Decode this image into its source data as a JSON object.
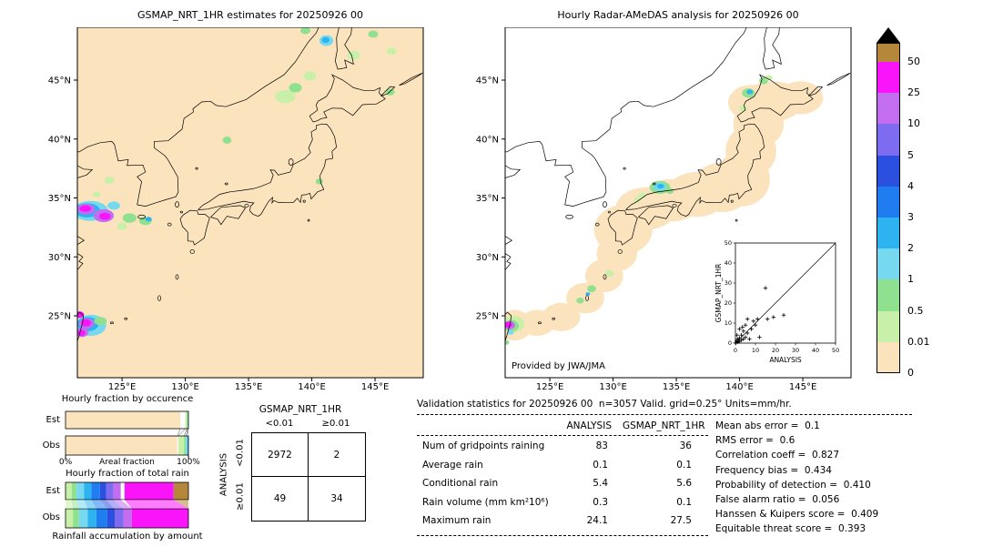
{
  "colors": {
    "background": "#ffffff",
    "map_land": "#fbe3bd",
    "coverage": "#fbe3bd",
    "coastline": "#000000",
    "text": "#000000"
  },
  "chart_data": [
    {
      "type": "map",
      "title": "GSMAP_NRT_1HR estimates for 20250926 00",
      "background": "#fbe3bd",
      "x_ticks": [
        {
          "lon": 125,
          "label": "125°E"
        },
        {
          "lon": 130,
          "label": "130°E"
        },
        {
          "lon": 135,
          "label": "135°E"
        },
        {
          "lon": 140,
          "label": "140°E"
        },
        {
          "lon": 145,
          "label": "145°E"
        }
      ],
      "y_ticks": [
        {
          "lat": 45,
          "label": "45°N"
        },
        {
          "lat": 40,
          "label": "40°N"
        },
        {
          "lat": 35,
          "label": "35°N"
        },
        {
          "lat": 30,
          "label": "30°N"
        },
        {
          "lat": 25,
          "label": "25°N"
        }
      ],
      "blobs": [
        [
          122.5,
          33.9,
          1.4,
          0.85,
          "#76d9f0"
        ],
        [
          122.25,
          33.95,
          1.0,
          0.6,
          "#2db4f0"
        ],
        [
          122.15,
          34.05,
          0.72,
          0.45,
          "#c36df0"
        ],
        [
          122.1,
          34.1,
          0.45,
          0.28,
          "#fa14fa"
        ],
        [
          123.55,
          33.5,
          0.8,
          0.55,
          "#c36df0"
        ],
        [
          123.65,
          33.45,
          0.45,
          0.3,
          "#fa14fa"
        ],
        [
          124.35,
          34.35,
          0.5,
          0.35,
          "#76d9f0"
        ],
        [
          125.6,
          33.3,
          0.55,
          0.4,
          "#8fe08f"
        ],
        [
          126.85,
          33.05,
          0.5,
          0.35,
          "#8fe08f"
        ],
        [
          127.1,
          33.2,
          0.25,
          0.2,
          "#2db4f0"
        ],
        [
          125.0,
          32.6,
          0.4,
          0.3,
          "#c8f0a8"
        ],
        [
          124.0,
          36.5,
          0.4,
          0.3,
          "#c8f0a8"
        ],
        [
          123.0,
          35.3,
          0.32,
          0.25,
          "#c8f0a8"
        ],
        [
          122.55,
          24.2,
          1.2,
          0.9,
          "#76d9f0"
        ],
        [
          122.3,
          24.3,
          0.85,
          0.6,
          "#2db4f0"
        ],
        [
          122.2,
          24.35,
          0.6,
          0.45,
          "#c36df0"
        ],
        [
          122.15,
          24.4,
          0.4,
          0.3,
          "#fa14fa"
        ],
        [
          121.85,
          23.6,
          0.5,
          0.4,
          "#c36df0"
        ],
        [
          121.8,
          23.55,
          0.3,
          0.25,
          "#fa14fa"
        ],
        [
          123.3,
          24.55,
          0.5,
          0.35,
          "#8fe08f"
        ],
        [
          121.65,
          25.1,
          0.35,
          0.28,
          "#fa14fa"
        ],
        [
          137.9,
          43.6,
          0.8,
          0.55,
          "#c8f0a8"
        ],
        [
          138.7,
          44.35,
          0.5,
          0.4,
          "#8fe08f"
        ],
        [
          139.85,
          45.35,
          0.5,
          0.4,
          "#c8f0a8"
        ],
        [
          141.15,
          48.35,
          0.55,
          0.45,
          "#76d9f0"
        ],
        [
          141.1,
          48.4,
          0.3,
          0.25,
          "#2db4f0"
        ],
        [
          143.3,
          47.1,
          0.5,
          0.4,
          "#c8f0a8"
        ],
        [
          144.85,
          48.9,
          0.4,
          0.3,
          "#8fe08f"
        ],
        [
          146.3,
          47.45,
          0.4,
          0.3,
          "#c8f0a8"
        ],
        [
          146.2,
          44.0,
          0.35,
          0.3,
          "#8fe08f"
        ],
        [
          133.3,
          39.9,
          0.35,
          0.3,
          "#8fe08f"
        ],
        [
          140.6,
          36.4,
          0.3,
          0.25,
          "#8fe08f"
        ],
        [
          139.5,
          49.2,
          0.4,
          0.3,
          "#8fe08f"
        ]
      ]
    },
    {
      "type": "map",
      "title": "Hourly Radar-AMeDAS analysis for 20250926 00",
      "credit": "Provided by JWA/JMA",
      "background": "#ffffff",
      "x_ticks": [
        {
          "lon": 125,
          "label": "125°E"
        },
        {
          "lon": 130,
          "label": "130°E"
        },
        {
          "lon": 135,
          "label": "135°E"
        },
        {
          "lon": 140,
          "label": "140°E"
        },
        {
          "lon": 145,
          "label": "145°E"
        }
      ],
      "y_ticks": [
        {
          "lat": 45,
          "label": "45°N"
        },
        {
          "lat": 40,
          "label": "40°N"
        },
        {
          "lat": 35,
          "label": "35°N"
        },
        {
          "lat": 30,
          "label": "30°N"
        },
        {
          "lat": 25,
          "label": "25°N"
        }
      ],
      "coverage": [
        [
          130.8,
          32.3,
          2.3,
          2.1
        ],
        [
          132.6,
          34.1,
          2.4,
          1.8
        ],
        [
          134.6,
          34.8,
          2.4,
          1.8
        ],
        [
          136.6,
          35.3,
          2.4,
          1.9
        ],
        [
          138.6,
          35.9,
          2.4,
          2.1
        ],
        [
          140.2,
          36.6,
          2.2,
          2.3
        ],
        [
          140.9,
          39.0,
          2.0,
          2.2
        ],
        [
          141.5,
          41.3,
          2.0,
          2.0
        ],
        [
          142.6,
          43.2,
          2.4,
          1.7
        ],
        [
          140.9,
          43.1,
          1.8,
          1.5
        ],
        [
          144.8,
          43.5,
          1.8,
          1.4
        ],
        [
          130.3,
          30.3,
          1.6,
          1.5
        ],
        [
          129.3,
          28.4,
          1.5,
          1.4
        ],
        [
          127.8,
          26.5,
          1.5,
          1.3
        ],
        [
          125.9,
          24.9,
          1.5,
          1.2
        ],
        [
          124.0,
          24.4,
          1.4,
          1.1
        ],
        [
          122.2,
          24.2,
          1.4,
          1.3
        ]
      ],
      "blobs": [
        [
          133.7,
          35.9,
          0.8,
          0.55,
          "#8fe08f"
        ],
        [
          133.7,
          35.95,
          0.5,
          0.35,
          "#76d9f0"
        ],
        [
          133.75,
          36.0,
          0.28,
          0.2,
          "#2db4f0"
        ],
        [
          134.5,
          35.6,
          0.3,
          0.25,
          "#8fe08f"
        ],
        [
          132.3,
          35.2,
          0.3,
          0.22,
          "#c8f0a8"
        ],
        [
          131.9,
          34.85,
          0.25,
          0.2,
          "#c8f0a8"
        ],
        [
          140.7,
          43.9,
          0.5,
          0.4,
          "#8fe08f"
        ],
        [
          140.8,
          44.0,
          0.25,
          0.2,
          "#2db4f0"
        ],
        [
          141.9,
          44.95,
          0.35,
          0.3,
          "#8fe08f"
        ],
        [
          142.3,
          45.2,
          0.3,
          0.22,
          "#c8f0a8"
        ],
        [
          140.3,
          42.6,
          0.3,
          0.25,
          "#c8f0a8"
        ],
        [
          128.3,
          27.3,
          0.35,
          0.3,
          "#8fe08f"
        ],
        [
          127.4,
          26.3,
          0.3,
          0.25,
          "#8fe08f"
        ],
        [
          128.0,
          26.85,
          0.18,
          0.15,
          "#2db4f0"
        ],
        [
          129.7,
          28.6,
          0.35,
          0.28,
          "#c8f0a8"
        ],
        [
          122.1,
          24.3,
          0.9,
          0.7,
          "#c8f0a8"
        ],
        [
          121.95,
          24.15,
          0.6,
          0.5,
          "#8fe08f"
        ],
        [
          121.8,
          24.2,
          0.45,
          0.35,
          "#c36df0"
        ],
        [
          121.72,
          24.25,
          0.3,
          0.25,
          "#fa14fa"
        ],
        [
          121.9,
          23.6,
          0.25,
          0.2,
          "#76d9f0"
        ],
        [
          121.55,
          22.75,
          0.25,
          0.2,
          "#8fe08f"
        ]
      ],
      "inset": {
        "xlabel": "ANALYSIS",
        "ylabel": "GSMAP_NRT_1HR",
        "xlim": [
          0,
          50
        ],
        "ylim": [
          0,
          50
        ],
        "x_tick_labels": [
          "0",
          "10",
          "20",
          "30",
          "40",
          "50"
        ],
        "y_tick_labels": [
          "0",
          "10",
          "20",
          "30",
          "40",
          "50"
        ],
        "identity_line": true,
        "points": [
          [
            0.3,
            0.2
          ],
          [
            0.5,
            1
          ],
          [
            1,
            0.5
          ],
          [
            1,
            2
          ],
          [
            1.5,
            1
          ],
          [
            2,
            2.5
          ],
          [
            2,
            0.8
          ],
          [
            2,
            7
          ],
          [
            3,
            1.5
          ],
          [
            3,
            4
          ],
          [
            3.5,
            8
          ],
          [
            4,
            2
          ],
          [
            4,
            6
          ],
          [
            5,
            3
          ],
          [
            5,
            9
          ],
          [
            6,
            5
          ],
          [
            6,
            12
          ],
          [
            7,
            2
          ],
          [
            8,
            7
          ],
          [
            0.8,
            4
          ],
          [
            9,
            11
          ],
          [
            10,
            9
          ],
          [
            11,
            12
          ],
          [
            12,
            3
          ],
          [
            15,
            27.5
          ],
          [
            16,
            12
          ],
          [
            19,
            13
          ],
          [
            24.1,
            14
          ]
        ]
      }
    },
    {
      "type": "colorbar",
      "units": "mm/hr",
      "levels": [
        "50",
        "25",
        "10",
        "5",
        "4",
        "3",
        "2",
        "1",
        "0.5",
        "0.01",
        "0"
      ],
      "band_colors_top_to_bottom": [
        "#b5873a",
        "#fa14fa",
        "#c36df0",
        "#7d6cf0",
        "#2b50e0",
        "#1f7df0",
        "#2db4f0",
        "#76d9f0",
        "#8fe08f",
        "#c8f0a8",
        "#fbe3bd"
      ],
      "overflow_marker": "black-up-triangle"
    },
    {
      "type": "bar",
      "title": "Hourly fraction by occurence",
      "axis_label": "Areal fraction",
      "axis_min_label": "0%",
      "axis_max_label": "100%",
      "rows": [
        {
          "label": "Est",
          "segments": [
            [
              "#fbe3bd",
              93.5
            ],
            [
              "#ffffff",
              4.0
            ],
            [
              "#c8f0a8",
              1.4
            ],
            [
              "#8fe08f",
              0.6
            ],
            [
              "#76d9f0",
              0.3
            ],
            [
              "#2db4f0",
              0.2
            ]
          ]
        },
        {
          "label": "Obs",
          "segments": [
            [
              "#fbe3bd",
              91.0
            ],
            [
              "#ffffff",
              0.8
            ],
            [
              "#c8f0a8",
              4.6
            ],
            [
              "#8fe08f",
              1.6
            ],
            [
              "#76d9f0",
              1.2
            ],
            [
              "#2db4f0",
              0.8
            ]
          ]
        }
      ]
    },
    {
      "type": "bar",
      "title": "Hourly fraction of total rain",
      "footer": "Rainfall accumulation by amount",
      "rows": [
        {
          "label": "Est",
          "segments": [
            [
              "#c8f0a8",
              5
            ],
            [
              "#8fe08f",
              4
            ],
            [
              "#76d9f0",
              6
            ],
            [
              "#2db4f0",
              6
            ],
            [
              "#1f7df0",
              7
            ],
            [
              "#2b50e0",
              5
            ],
            [
              "#7d6cf0",
              6
            ],
            [
              "#c36df0",
              6
            ],
            [
              "#ffffff",
              3
            ],
            [
              "#fa14fa",
              40
            ],
            [
              "#b5873a",
              12
            ]
          ]
        },
        {
          "label": "Obs",
          "segments": [
            [
              "#c8f0a8",
              6
            ],
            [
              "#8fe08f",
              5
            ],
            [
              "#76d9f0",
              7
            ],
            [
              "#2db4f0",
              7
            ],
            [
              "#1f7df0",
              9
            ],
            [
              "#2b50e0",
              6
            ],
            [
              "#7d6cf0",
              7
            ],
            [
              "#c36df0",
              7
            ],
            [
              "#ffffff",
              0
            ],
            [
              "#fa14fa",
              46
            ],
            [
              "#b5873a",
              0
            ]
          ]
        }
      ]
    },
    {
      "type": "table",
      "name": "contingency",
      "col_title": "GSMAP_NRT_1HR",
      "row_title": "ANALYSIS",
      "col_labels": [
        "<0.01",
        "≥0.01"
      ],
      "row_labels": [
        "<0.01",
        "≥0.01"
      ],
      "values": [
        [
          "2972",
          "2"
        ],
        [
          "49",
          "34"
        ]
      ]
    },
    {
      "type": "table",
      "name": "validation-statistics",
      "header": "Validation statistics for 20250926 00  n=3057 Valid. grid=0.25° Units=mm/hr.",
      "col_headers": [
        "ANALYSIS",
        "GSMAP_NRT_1HR"
      ],
      "rows": [
        {
          "label": "Num of gridpoints raining",
          "values": [
            "83",
            "36"
          ]
        },
        {
          "label": "Average rain",
          "values": [
            "0.1",
            "0.1"
          ]
        },
        {
          "label": "Conditional rain",
          "values": [
            "5.4",
            "5.6"
          ]
        },
        {
          "label": "Rain volume (mm km²10⁶)",
          "values": [
            "0.3",
            "0.1"
          ]
        },
        {
          "label": "Maximum rain",
          "values": [
            "24.1",
            "27.5"
          ]
        }
      ],
      "metrics": [
        {
          "label": "Mean abs error",
          "value": "0.1"
        },
        {
          "label": "RMS error",
          "value": "0.6"
        },
        {
          "label": "Correlation coeff",
          "value": "0.827"
        },
        {
          "label": "Frequency bias",
          "value": "0.434"
        },
        {
          "label": "Probability of detection",
          "value": "0.410"
        },
        {
          "label": "False alarm ratio",
          "value": "0.056"
        },
        {
          "label": "Hanssen & Kuipers score",
          "value": "0.409"
        },
        {
          "label": "Equitable threat score",
          "value": "0.393"
        }
      ]
    }
  ]
}
